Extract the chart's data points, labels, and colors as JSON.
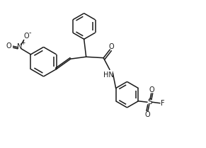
{
  "bg_color": "#ffffff",
  "line_color": "#1a1a1a",
  "line_width": 1.1,
  "fig_width": 2.91,
  "fig_height": 2.09,
  "dpi": 100,
  "xlim": [
    0,
    10
  ],
  "ylim": [
    0,
    7.2
  ]
}
